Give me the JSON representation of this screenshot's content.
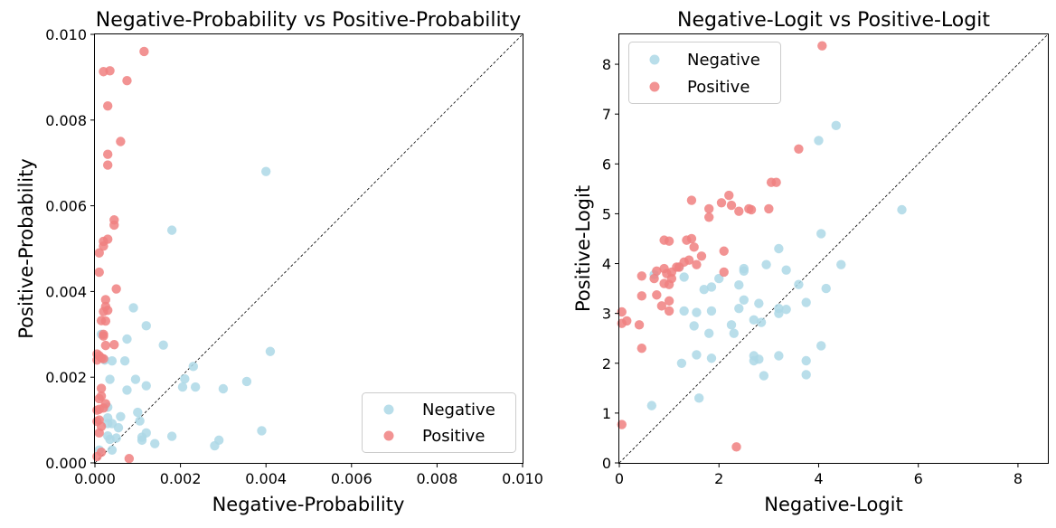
{
  "colors": {
    "negative": "#add8e6",
    "positive": "#f08080"
  },
  "chart_data": [
    {
      "type": "scatter",
      "title": "Negative-Probability vs Positive-Probability",
      "xlabel": "Negative-Probability",
      "ylabel": "Positive-Probability",
      "xlim": [
        0,
        0.01
      ],
      "ylim": [
        0,
        0.01
      ],
      "xticks": [
        "0.000",
        "0.002",
        "0.004",
        "0.006",
        "0.008",
        "0.010"
      ],
      "yticks": [
        "0.000",
        "0.002",
        "0.004",
        "0.006",
        "0.008",
        "0.010"
      ],
      "diagonal": true,
      "legend_position": "lower-right",
      "series": [
        {
          "name": "Negative",
          "points": [
            [
              0.004,
              0.0068
            ],
            [
              0.0018,
              0.00543
            ],
            [
              0.0009,
              0.00362
            ],
            [
              0.0012,
              0.0032
            ],
            [
              0.00075,
              0.00289
            ],
            [
              0.0016,
              0.00275
            ],
            [
              0.0041,
              0.0026
            ],
            [
              0.0004,
              0.00238
            ],
            [
              0.0007,
              0.00238
            ],
            [
              0.00023,
              0.0024
            ],
            [
              0.0023,
              0.00225
            ],
            [
              0.0021,
              0.00196
            ],
            [
              0.00095,
              0.00195
            ],
            [
              0.00035,
              0.00195
            ],
            [
              0.00355,
              0.0019
            ],
            [
              0.0012,
              0.0018
            ],
            [
              0.00205,
              0.00177
            ],
            [
              0.00235,
              0.00177
            ],
            [
              0.003,
              0.00173
            ],
            [
              0.00075,
              0.0017
            ],
            [
              0.0003,
              0.0013
            ],
            [
              0.001,
              0.00118
            ],
            [
              0.0006,
              0.00108
            ],
            [
              0.0003,
              0.00105
            ],
            [
              0.00105,
              0.00098
            ],
            [
              0.0004,
              0.00092
            ],
            [
              0.0003,
              0.00092
            ],
            [
              0.00055,
              0.00082
            ],
            [
              0.0039,
              0.00075
            ],
            [
              0.0012,
              0.0007
            ],
            [
              0.0003,
              0.00063
            ],
            [
              0.0018,
              0.00062
            ],
            [
              0.0011,
              0.0006
            ],
            [
              0.0005,
              0.00058
            ],
            [
              0.00035,
              0.00055
            ],
            [
              0.0029,
              0.00053
            ],
            [
              0.0011,
              0.00053
            ],
            [
              0.0014,
              0.00045
            ],
            [
              0.0028,
              0.0004
            ],
            [
              0.0004,
              0.0003
            ],
            [
              0.0001,
              0.0003
            ],
            [
              0.00015,
              0.003
            ]
          ]
        },
        {
          "name": "Positive",
          "points": [
            [
              0.00115,
              0.0096
            ],
            [
              0.00035,
              0.00915
            ],
            [
              0.0002,
              0.00913
            ],
            [
              0.00075,
              0.00892
            ],
            [
              0.0003,
              0.00833
            ],
            [
              0.0006,
              0.0075
            ],
            [
              0.0003,
              0.0072
            ],
            [
              0.0003,
              0.00695
            ],
            [
              0.00045,
              0.00567
            ],
            [
              0.00045,
              0.00555
            ],
            [
              0.0003,
              0.00522
            ],
            [
              0.0002,
              0.00517
            ],
            [
              0.0002,
              0.00506
            ],
            [
              0.0001,
              0.0049
            ],
            [
              0.0001,
              0.00445
            ],
            [
              0.0005,
              0.00406
            ],
            [
              0.00025,
              0.00381
            ],
            [
              0.00025,
              0.00365
            ],
            [
              0.0003,
              0.00356
            ],
            [
              0.0002,
              0.00353
            ],
            [
              0.00015,
              0.00332
            ],
            [
              0.00025,
              0.00331
            ],
            [
              0.0002,
              0.003
            ],
            [
              0.0002,
              0.00296
            ],
            [
              0.00045,
              0.00276
            ],
            [
              0.00025,
              0.00274
            ],
            [
              5e-05,
              0.00254
            ],
            [
              0.0001,
              0.0025
            ],
            [
              0.00015,
              0.00245
            ],
            [
              0.0002,
              0.00243
            ],
            [
              5e-05,
              0.0024
            ],
            [
              0.00015,
              0.00174
            ],
            [
              0.00015,
              0.00156
            ],
            [
              0.0001,
              0.0015
            ],
            [
              0.00025,
              0.00138
            ],
            [
              0.0002,
              0.00128
            ],
            [
              0.0001,
              0.00125
            ],
            [
              5e-05,
              0.00123
            ],
            [
              0.0001,
              0.001
            ],
            [
              5e-05,
              0.00097
            ],
            [
              0.00015,
              0.00085
            ],
            [
              0.0001,
              0.0007
            ],
            [
              0.00015,
              0.00025
            ],
            [
              5e-05,
              0.00015
            ],
            [
              0.0008,
              0.0001
            ]
          ]
        }
      ]
    },
    {
      "type": "scatter",
      "title": "Negative-Logit vs Positive-Logit",
      "xlabel": "Negative-Logit",
      "ylabel": "Positive-Logit",
      "xlim": [
        0,
        8.6
      ],
      "ylim": [
        0,
        8.6
      ],
      "xticks": [
        "0",
        "2",
        "4",
        "6",
        "8"
      ],
      "yticks": [
        "0",
        "1",
        "2",
        "3",
        "4",
        "5",
        "6",
        "7",
        "8"
      ],
      "diagonal": true,
      "legend_position": "upper-left",
      "series": [
        {
          "name": "Negative",
          "points": [
            [
              4.35,
              6.77
            ],
            [
              4.0,
              6.47
            ],
            [
              5.67,
              5.08
            ],
            [
              4.05,
              4.6
            ],
            [
              3.2,
              4.3
            ],
            [
              4.45,
              3.98
            ],
            [
              2.95,
              3.98
            ],
            [
              2.5,
              3.9
            ],
            [
              2.5,
              3.85
            ],
            [
              3.35,
              3.87
            ],
            [
              1.2,
              3.93
            ],
            [
              2.0,
              3.7
            ],
            [
              1.3,
              3.73
            ],
            [
              0.7,
              3.78
            ],
            [
              3.6,
              3.58
            ],
            [
              2.4,
              3.57
            ],
            [
              1.85,
              3.53
            ],
            [
              1.7,
              3.48
            ],
            [
              4.15,
              3.5
            ],
            [
              2.5,
              3.27
            ],
            [
              3.75,
              3.22
            ],
            [
              2.8,
              3.2
            ],
            [
              1.3,
              3.05
            ],
            [
              1.55,
              3.02
            ],
            [
              1.85,
              3.05
            ],
            [
              2.4,
              3.1
            ],
            [
              3.2,
              3.1
            ],
            [
              3.35,
              3.08
            ],
            [
              3.2,
              3.0
            ],
            [
              2.7,
              2.87
            ],
            [
              2.85,
              2.82
            ],
            [
              1.5,
              2.75
            ],
            [
              2.25,
              2.77
            ],
            [
              2.3,
              2.6
            ],
            [
              1.8,
              2.6
            ],
            [
              4.05,
              2.35
            ],
            [
              1.55,
              2.17
            ],
            [
              2.7,
              2.15
            ],
            [
              3.2,
              2.15
            ],
            [
              1.85,
              2.1
            ],
            [
              2.8,
              2.08
            ],
            [
              2.7,
              2.05
            ],
            [
              3.75,
              2.05
            ],
            [
              1.25,
              2.0
            ],
            [
              2.9,
              1.75
            ],
            [
              3.75,
              1.77
            ],
            [
              1.6,
              1.3
            ],
            [
              0.65,
              1.15
            ]
          ]
        },
        {
          "name": "Positive",
          "points": [
            [
              4.07,
              8.37
            ],
            [
              3.6,
              6.3
            ],
            [
              3.05,
              5.63
            ],
            [
              3.15,
              5.63
            ],
            [
              2.2,
              5.37
            ],
            [
              1.45,
              5.27
            ],
            [
              2.05,
              5.22
            ],
            [
              2.25,
              5.17
            ],
            [
              1.8,
              5.1
            ],
            [
              2.6,
              5.1
            ],
            [
              2.65,
              5.08
            ],
            [
              2.4,
              5.05
            ],
            [
              3.0,
              5.1
            ],
            [
              1.8,
              4.93
            ],
            [
              1.45,
              4.5
            ],
            [
              1.35,
              4.47
            ],
            [
              0.9,
              4.47
            ],
            [
              1.0,
              4.45
            ],
            [
              1.5,
              4.33
            ],
            [
              2.1,
              4.25
            ],
            [
              1.65,
              4.15
            ],
            [
              1.4,
              4.07
            ],
            [
              1.3,
              4.03
            ],
            [
              1.55,
              3.98
            ],
            [
              1.15,
              3.93
            ],
            [
              1.2,
              3.93
            ],
            [
              0.9,
              3.9
            ],
            [
              0.75,
              3.85
            ],
            [
              1.05,
              3.83
            ],
            [
              2.1,
              3.83
            ],
            [
              0.95,
              3.8
            ],
            [
              0.45,
              3.75
            ],
            [
              0.7,
              3.7
            ],
            [
              1.05,
              3.7
            ],
            [
              0.9,
              3.6
            ],
            [
              1.0,
              3.58
            ],
            [
              0.75,
              3.37
            ],
            [
              0.45,
              3.35
            ],
            [
              1.0,
              3.25
            ],
            [
              0.85,
              3.15
            ],
            [
              1.0,
              3.05
            ],
            [
              0.05,
              3.03
            ],
            [
              0.15,
              2.85
            ],
            [
              0.05,
              2.8
            ],
            [
              0.4,
              2.77
            ],
            [
              0.45,
              2.3
            ],
            [
              0.05,
              0.77
            ],
            [
              2.35,
              0.32
            ]
          ]
        }
      ]
    }
  ]
}
